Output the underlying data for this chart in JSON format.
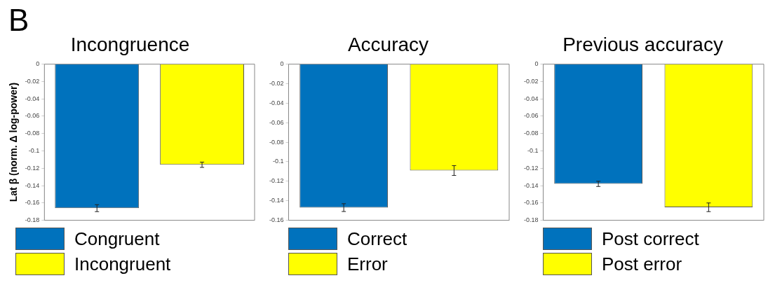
{
  "chart_data": [
    {
      "type": "bar",
      "title": "Incongruence",
      "ylabel": "Lat β (norm. Δ log-power)",
      "annotations": [
        "B"
      ],
      "categories": [
        null,
        null
      ],
      "ylim": [
        -0.18,
        0
      ],
      "yticks": [
        0,
        -0.02,
        -0.04,
        -0.06,
        -0.08,
        -0.1,
        -0.12,
        -0.14,
        -0.16,
        -0.18
      ],
      "grid": false,
      "legend": "bottom",
      "tick_labels": "y",
      "series": [
        {
          "name": "Congruent",
          "color": "#0072bd",
          "values": [
            -0.166,
            null
          ],
          "errors": [
            0.004,
            null
          ]
        },
        {
          "name": "Incongruent",
          "color": "#ffff00",
          "values": [
            null,
            -0.116
          ],
          "errors": [
            null,
            0.003
          ]
        }
      ]
    },
    {
      "type": "bar",
      "title": "Accuracy",
      "categories": [
        null,
        null
      ],
      "ylim": [
        -0.16,
        0
      ],
      "yticks": [
        0,
        -0.02,
        -0.04,
        -0.06,
        -0.08,
        -0.1,
        -0.12,
        -0.14,
        -0.16
      ],
      "grid": false,
      "legend": "bottom",
      "tick_labels": "y",
      "series": [
        {
          "name": "Correct",
          "color": "#0072bd",
          "values": [
            -0.147,
            null
          ],
          "errors": [
            0.004,
            null
          ]
        },
        {
          "name": "Error",
          "color": "#ffff00",
          "values": [
            null,
            -0.109
          ],
          "errors": [
            null,
            0.005
          ]
        }
      ]
    },
    {
      "type": "bar",
      "title": "Previous accuracy",
      "categories": [
        null,
        null
      ],
      "ylim": [
        -0.18,
        0
      ],
      "yticks": [
        0,
        -0.02,
        -0.04,
        -0.06,
        -0.08,
        -0.1,
        -0.12,
        -0.14,
        -0.16,
        -0.18
      ],
      "grid": false,
      "legend": "bottom",
      "tick_labels": "y",
      "series": [
        {
          "name": "Post correct",
          "color": "#0072bd",
          "values": [
            -0.138,
            null
          ],
          "errors": [
            0.003,
            null
          ]
        },
        {
          "name": "Post error",
          "color": "#ffff00",
          "values": [
            null,
            -0.165
          ],
          "errors": [
            null,
            0.005
          ]
        }
      ]
    }
  ]
}
